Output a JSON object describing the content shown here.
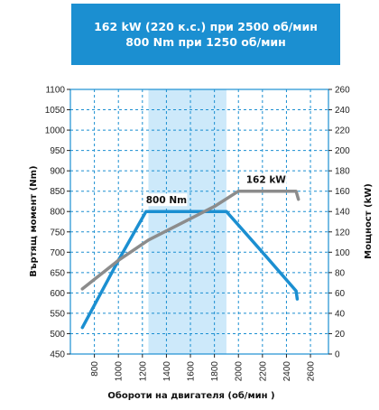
{
  "header": {
    "line1": "162 kW (220 к.с.) при 2500 об/мин",
    "line2": "800 Nm при 1250 об/мин"
  },
  "chart_data": {
    "type": "line",
    "xlabel": "Обороти на двигателя (об/мин )",
    "ylabel": "Въртящ момент (Nm)",
    "y2label": "Мощност (kW)",
    "xlim": [
      600,
      2750
    ],
    "ylim": [
      450,
      1100
    ],
    "y2lim": [
      0,
      260
    ],
    "x_ticks": [
      "800",
      "1000",
      "1200",
      "1400",
      "1600",
      "1800",
      "2000",
      "2200",
      "2400",
      "2600"
    ],
    "y_ticks": [
      "450",
      "500",
      "550",
      "600",
      "650",
      "700",
      "750",
      "800",
      "850",
      "900",
      "950",
      "1000",
      "1050",
      "1100"
    ],
    "y2_ticks": [
      "0",
      "20",
      "40",
      "60",
      "80",
      "100",
      "120",
      "140",
      "160",
      "180",
      "200",
      "220",
      "240",
      "260"
    ],
    "highlight_band": [
      1250,
      1900
    ],
    "grid": true,
    "colors": {
      "torque": "#1b8fd1",
      "power": "#8c8c8c",
      "band": "#cde9fa",
      "grid": "#1b8fd1",
      "header": "#1b8fd1"
    },
    "series": [
      {
        "key": "torque",
        "axis": "left",
        "x": [
          700,
          1000,
          1230,
          1900,
          2200,
          2480,
          2490
        ],
        "y": [
          515,
          680,
          800,
          800,
          700,
          605,
          585
        ]
      },
      {
        "key": "power",
        "axis": "right",
        "x": [
          700,
          1000,
          1250,
          1500,
          1800,
          2000,
          2480,
          2500
        ],
        "y": [
          64,
          92,
          112,
          127,
          145,
          160,
          160,
          152
        ]
      }
    ],
    "annotations": [
      {
        "text": "800 Nm",
        "x": 1400,
        "y": 820,
        "axis": "left"
      },
      {
        "text": "162 kW",
        "x": 2230,
        "y": 168,
        "axis": "right"
      }
    ]
  }
}
